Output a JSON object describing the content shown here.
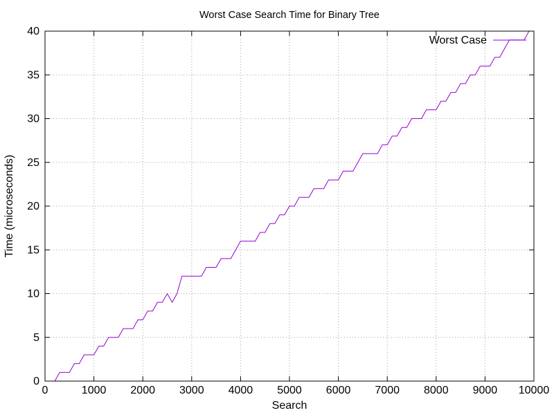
{
  "chart_data": {
    "type": "line",
    "title": "Worst Case Search Time for Binary Tree",
    "xlabel": "Search",
    "ylabel": "Time (microseconds)",
    "xlim": [
      0,
      10000
    ],
    "ylim": [
      0,
      40
    ],
    "x_ticks": [
      0,
      1000,
      2000,
      3000,
      4000,
      5000,
      6000,
      7000,
      8000,
      9000,
      10000
    ],
    "y_ticks": [
      0,
      5,
      10,
      15,
      20,
      25,
      30,
      35,
      40
    ],
    "grid": true,
    "legend_position": "top-right",
    "series": [
      {
        "name": "Worst Case",
        "color": "#9400d3",
        "x": [
          200,
          300,
          500,
          600,
          700,
          800,
          1000,
          1100,
          1200,
          1300,
          1500,
          1600,
          1800,
          1900,
          2000,
          2100,
          2200,
          2300,
          2400,
          2500,
          2600,
          2700,
          2800,
          2900,
          3000,
          3100,
          3200,
          3300,
          3500,
          3600,
          3800,
          3900,
          4000,
          4100,
          4300,
          4400,
          4500,
          4600,
          4700,
          4800,
          4900,
          5000,
          5100,
          5200,
          5400,
          5500,
          5700,
          5800,
          6000,
          6100,
          6300,
          6400,
          6500,
          6600,
          6800,
          6900,
          7000,
          7100,
          7200,
          7300,
          7400,
          7500,
          7600,
          7700,
          7800,
          7900,
          8000,
          8100,
          8200,
          8300,
          8400,
          8500,
          8600,
          8700,
          8800,
          8900,
          9000,
          9100,
          9200,
          9300,
          9400,
          9500,
          9600,
          9700,
          9800,
          9900
        ],
        "y": [
          0,
          1,
          1,
          2,
          2,
          3,
          3,
          4,
          4,
          5,
          5,
          6,
          6,
          7,
          7,
          8,
          8,
          9,
          9,
          10,
          9,
          10,
          12,
          12,
          12,
          12,
          12,
          13,
          13,
          14,
          14,
          15,
          16,
          16,
          16,
          17,
          17,
          18,
          18,
          19,
          19,
          20,
          20,
          21,
          21,
          22,
          22,
          23,
          23,
          24,
          24,
          25,
          26,
          26,
          26,
          27,
          27,
          28,
          28,
          29,
          29,
          30,
          30,
          30,
          31,
          31,
          31,
          32,
          32,
          33,
          33,
          34,
          34,
          35,
          35,
          36,
          36,
          36,
          37,
          37,
          38,
          39,
          39,
          39,
          39,
          40
        ]
      }
    ]
  }
}
